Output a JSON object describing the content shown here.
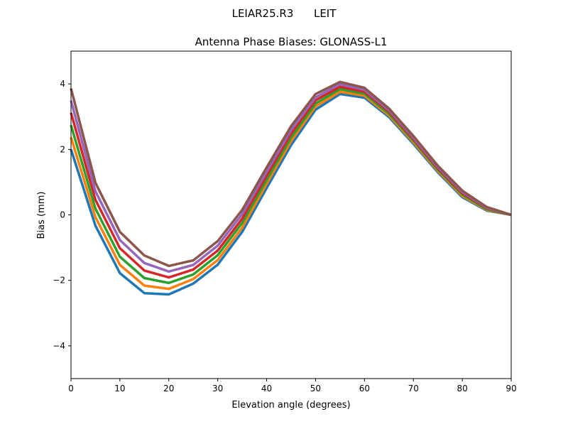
{
  "figure": {
    "suptitle": "LEIAR25.R3      LEIT"
  },
  "chart_data": {
    "type": "line",
    "title": "Antenna Phase Biases: GLONASS-L1",
    "xlabel": "Elevation angle (degrees)",
    "ylabel": "Bias (mm)",
    "xlim": [
      0,
      90
    ],
    "ylim": [
      -5,
      5
    ],
    "xticks": [
      0,
      10,
      20,
      30,
      40,
      50,
      60,
      70,
      80,
      90
    ],
    "yticks": [
      -4,
      -2,
      0,
      2,
      4
    ],
    "grid": false,
    "legend": "none",
    "colors": [
      "#1f77b4",
      "#ff7f0e",
      "#2ca02c",
      "#d62728",
      "#9467bd",
      "#8c564b",
      "#e377c2",
      "#7f7f7f",
      "#bcbd22",
      "#17becf"
    ],
    "x": [
      0,
      5,
      10,
      15,
      20,
      25,
      30,
      35,
      40,
      45,
      50,
      55,
      60,
      65,
      70,
      75,
      80,
      85,
      90
    ],
    "series": [
      {
        "values": [
          2.0,
          -0.33,
          -1.78,
          -2.39,
          -2.43,
          -2.1,
          -1.52,
          -0.52,
          0.82,
          2.13,
          3.21,
          3.69,
          3.58,
          2.99,
          2.17,
          1.3,
          0.54,
          0.13,
          0
        ]
      },
      {
        "values": [
          2.37,
          -0.07,
          -1.53,
          -2.16,
          -2.26,
          -1.96,
          -1.38,
          -0.39,
          0.95,
          2.25,
          3.31,
          3.76,
          3.64,
          3.04,
          2.22,
          1.34,
          0.58,
          0.15,
          0
        ]
      },
      {
        "values": [
          2.74,
          0.19,
          -1.28,
          -1.93,
          -2.08,
          -1.82,
          -1.23,
          -0.25,
          1.07,
          2.36,
          3.4,
          3.84,
          3.7,
          3.09,
          2.27,
          1.38,
          0.62,
          0.17,
          0
        ]
      },
      {
        "values": [
          3.12,
          0.46,
          -1.02,
          -1.7,
          -1.91,
          -1.67,
          -1.09,
          -0.12,
          1.2,
          2.48,
          3.5,
          3.91,
          3.76,
          3.15,
          2.31,
          1.42,
          0.66,
          0.2,
          0
        ]
      },
      {
        "values": [
          3.49,
          0.72,
          -0.77,
          -1.47,
          -1.73,
          -1.53,
          -0.94,
          0.02,
          1.32,
          2.59,
          3.59,
          3.99,
          3.82,
          3.2,
          2.36,
          1.46,
          0.7,
          0.22,
          0
        ]
      },
      {
        "values": [
          3.86,
          0.98,
          -0.52,
          -1.24,
          -1.56,
          -1.39,
          -0.8,
          0.15,
          1.45,
          2.71,
          3.69,
          4.06,
          3.88,
          3.25,
          2.41,
          1.5,
          0.74,
          0.24,
          0
        ]
      }
    ]
  }
}
